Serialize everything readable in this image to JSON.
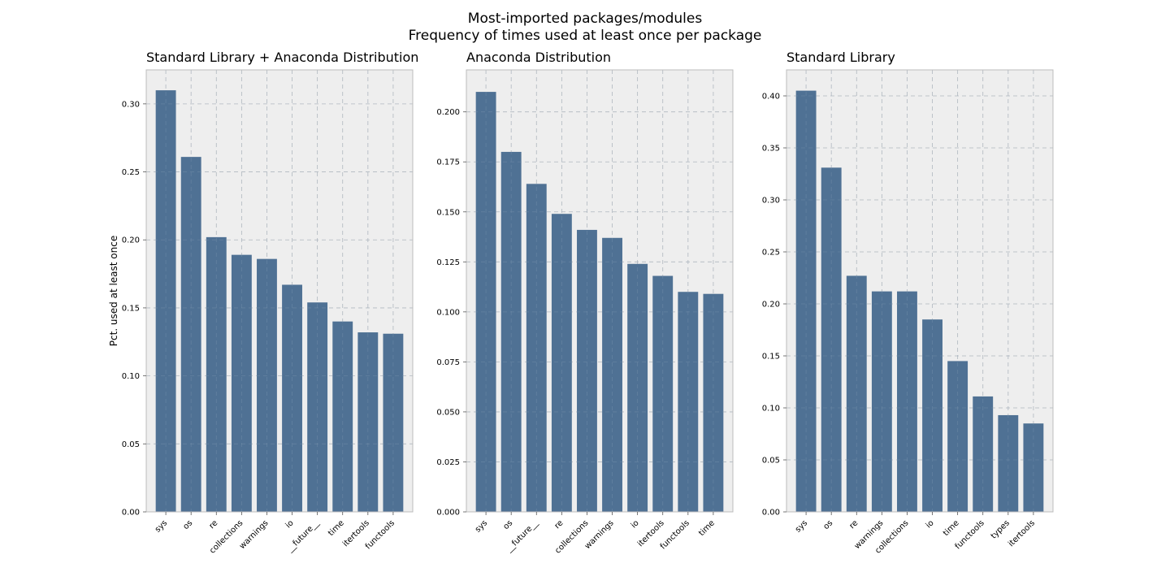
{
  "figure": {
    "title_line1": "Most-imported packages/modules",
    "title_line2": "Frequency of times used at least once per package"
  },
  "colors": {
    "bar": "#4f7194",
    "panel_background": "#eeeeee",
    "grid": "#c8c8c8",
    "spine": "#bcbcbc"
  },
  "chart_data": [
    {
      "type": "bar",
      "title": "Standard Library + Anaconda Distribution",
      "xlabel": "",
      "ylabel": "Pct. used at least once",
      "categories": [
        "sys",
        "os",
        "re",
        "collections",
        "warnings",
        "io",
        "__future__",
        "time",
        "itertools",
        "functools"
      ],
      "values": [
        0.31,
        0.261,
        0.202,
        0.189,
        0.186,
        0.167,
        0.154,
        0.14,
        0.132,
        0.131
      ],
      "ylim": [
        0,
        0.325
      ],
      "yticks": [
        0.0,
        0.05,
        0.1,
        0.15,
        0.2,
        0.25,
        0.3
      ],
      "ytick_labels": [
        "0.00",
        "0.05",
        "0.10",
        "0.15",
        "0.20",
        "0.25",
        "0.30"
      ],
      "grid": true
    },
    {
      "type": "bar",
      "title": "Anaconda Distribution",
      "xlabel": "",
      "ylabel": "",
      "categories": [
        "sys",
        "os",
        "__future__",
        "re",
        "collections",
        "warnings",
        "io",
        "itertools",
        "functools",
        "time"
      ],
      "values": [
        0.21,
        0.18,
        0.164,
        0.149,
        0.141,
        0.137,
        0.124,
        0.118,
        0.11,
        0.109
      ],
      "ylim": [
        0,
        0.221
      ],
      "yticks": [
        0.0,
        0.025,
        0.05,
        0.075,
        0.1,
        0.125,
        0.15,
        0.175,
        0.2
      ],
      "ytick_labels": [
        "0.000",
        "0.025",
        "0.050",
        "0.075",
        "0.100",
        "0.125",
        "0.150",
        "0.175",
        "0.200"
      ],
      "grid": true
    },
    {
      "type": "bar",
      "title": "Standard Library",
      "xlabel": "",
      "ylabel": "",
      "categories": [
        "sys",
        "os",
        "re",
        "warnings",
        "collections",
        "io",
        "time",
        "functools",
        "types",
        "itertools"
      ],
      "values": [
        0.405,
        0.331,
        0.227,
        0.212,
        0.212,
        0.185,
        0.145,
        0.111,
        0.093,
        0.085
      ],
      "ylim": [
        0,
        0.425
      ],
      "yticks": [
        0.0,
        0.05,
        0.1,
        0.15,
        0.2,
        0.25,
        0.3,
        0.35,
        0.4
      ],
      "ytick_labels": [
        "0.00",
        "0.05",
        "0.10",
        "0.15",
        "0.20",
        "0.25",
        "0.30",
        "0.35",
        "0.40"
      ],
      "grid": true
    }
  ]
}
